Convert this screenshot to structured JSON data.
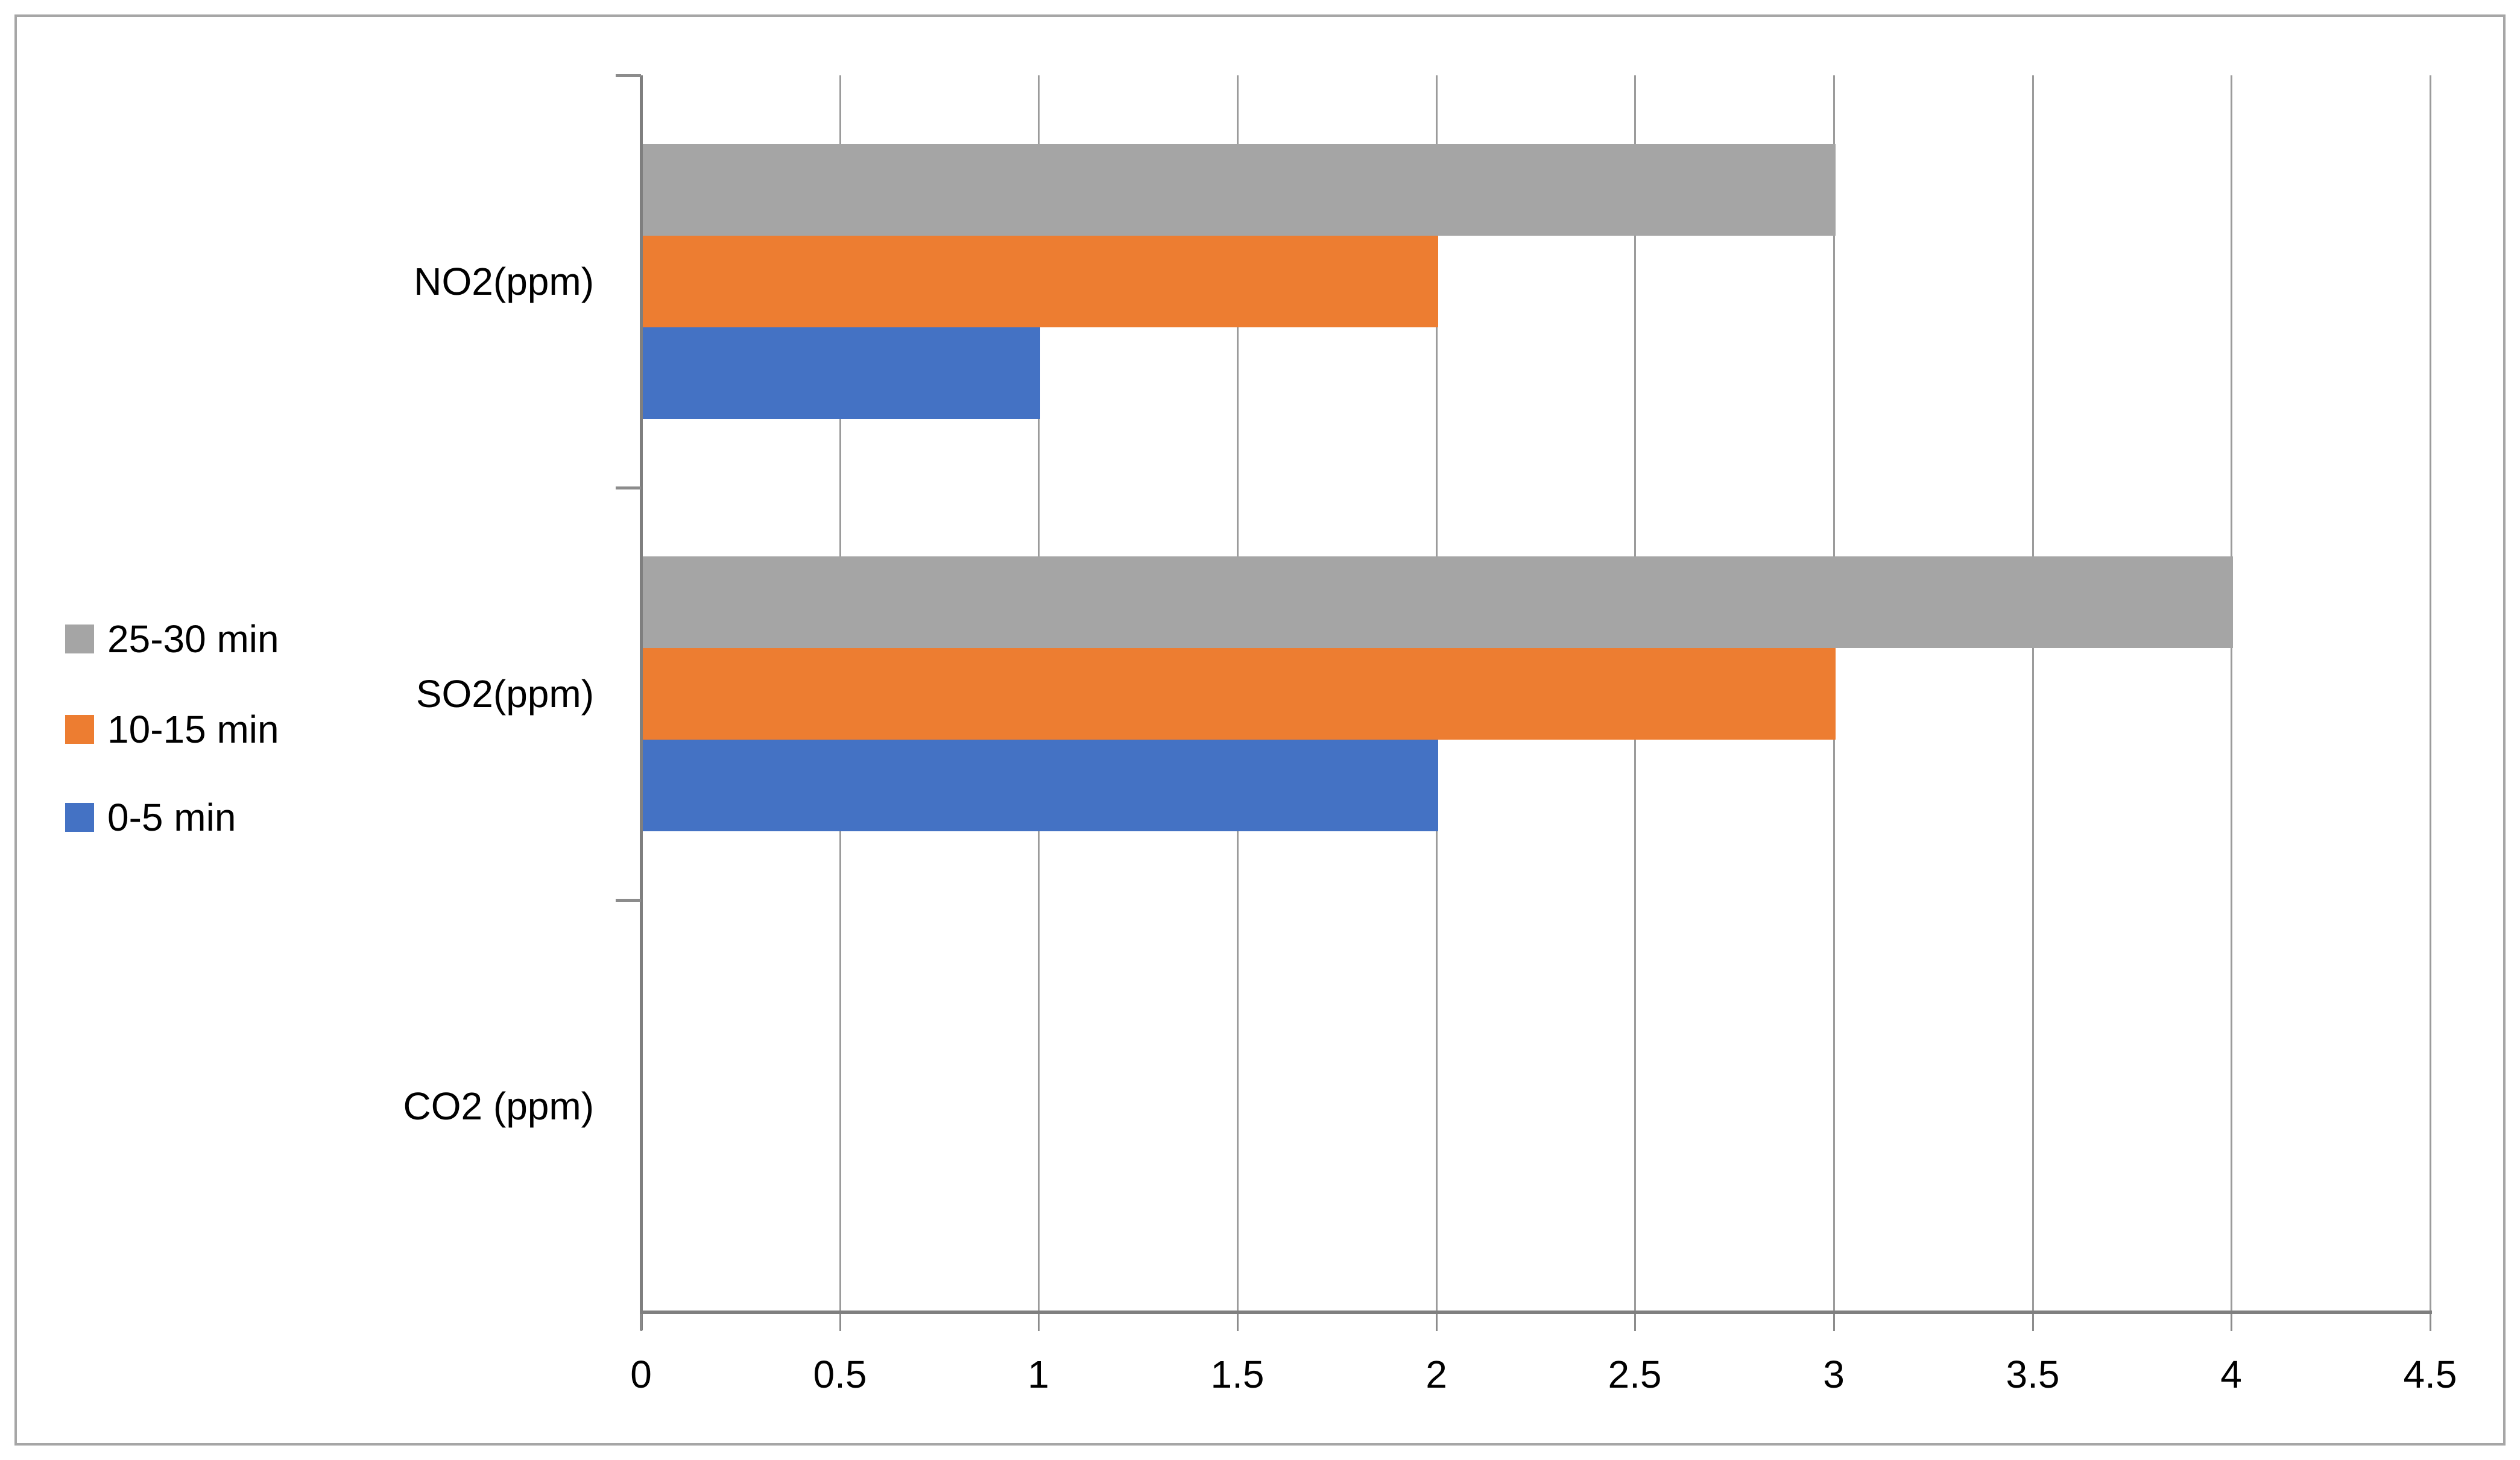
{
  "chart_data": {
    "type": "bar",
    "orientation": "horizontal",
    "title": "",
    "xlabel": "",
    "ylabel": "",
    "categories": [
      "NO2(ppm)",
      "SO2(ppm)",
      "CO2 (ppm)"
    ],
    "series_top_to_bottom": [
      {
        "name": "25-30 min",
        "color": "#A5A5A5",
        "values": [
          3,
          4,
          0
        ]
      },
      {
        "name": "10-15 min",
        "color": "#ED7D31",
        "values": [
          2,
          3,
          0
        ]
      },
      {
        "name": "0-5 min",
        "color": "#4472C4",
        "values": [
          1,
          2,
          0
        ]
      }
    ],
    "xlim": [
      0,
      4.5
    ],
    "x_tick_step": 0.5,
    "x_tick_labels": [
      "0",
      "0.5",
      "1",
      "1.5",
      "2",
      "2.5",
      "3",
      "3.5",
      "4",
      "4.5"
    ],
    "grid": "vertical-gridlines-on",
    "legend_position": "middle-left",
    "legend": [
      {
        "label": "25-30 min",
        "color": "#A5A5A5"
      },
      {
        "label": "10-15 min",
        "color": "#ED7D31"
      },
      {
        "label": "0-5 min",
        "color": "#4472C4"
      }
    ]
  },
  "style": {
    "background": "#FFFFFF",
    "border_color": "#A6A6A6",
    "axis_color": "#7F7F7F",
    "gridline_color": "#9B9B9B",
    "tick_color": "#8C8C8C",
    "text_color": "#000000"
  }
}
